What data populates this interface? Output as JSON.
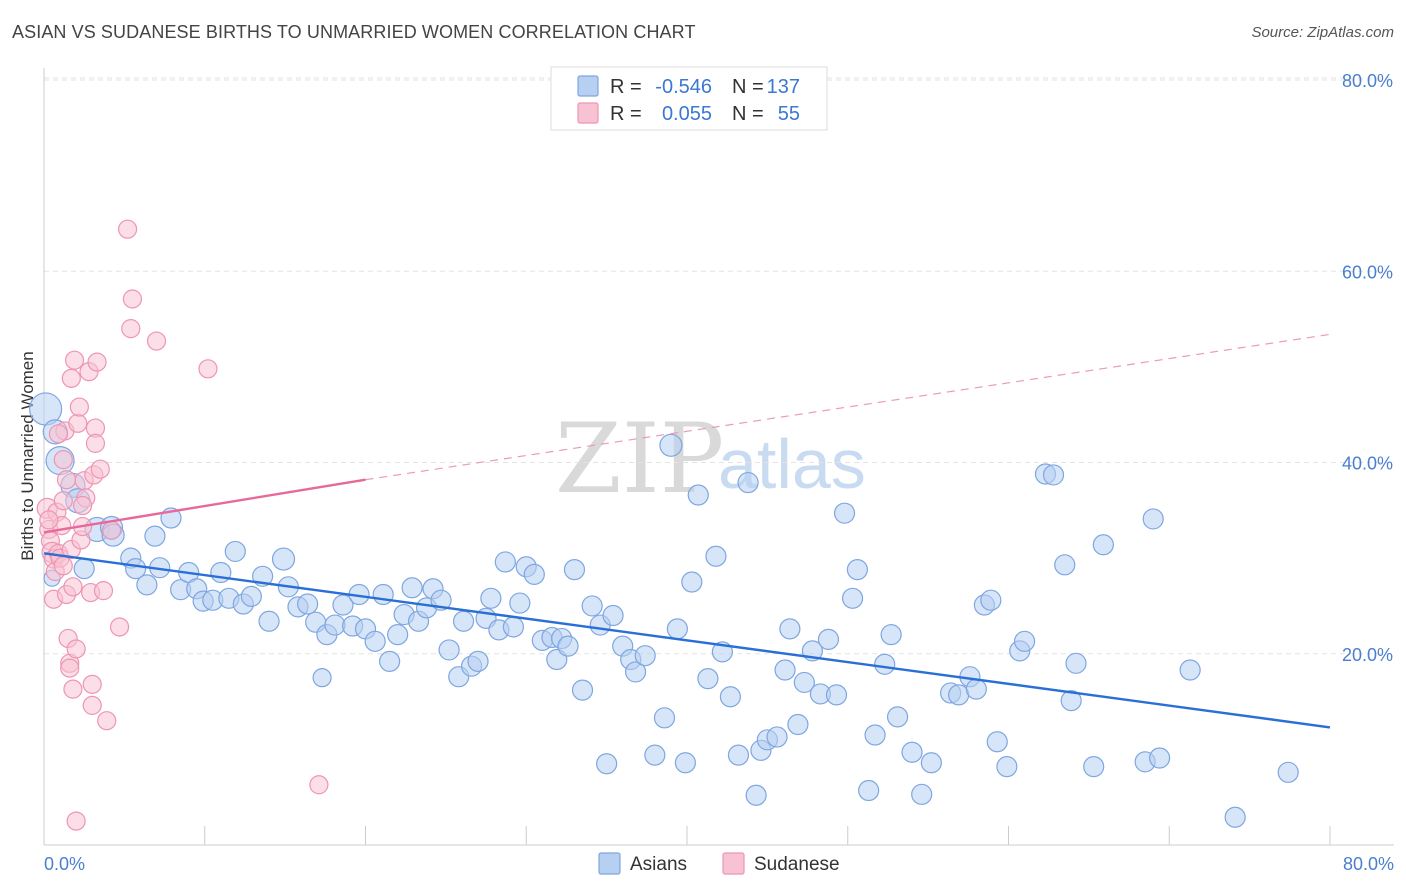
{
  "title": "ASIAN VS SUDANESE BIRTHS TO UNMARRIED WOMEN CORRELATION CHART",
  "source": "Source: ZipAtlas.com",
  "watermark": {
    "part1": "ZIP",
    "part2": "atlas"
  },
  "legend": {
    "r_label": "R =",
    "n_label": "N =",
    "series": [
      {
        "name": "Asians",
        "r": "-0.546",
        "n": "137",
        "fill": "#b7d0f2",
        "stroke": "#7ea6e0"
      },
      {
        "name": "Sudanese",
        "r": "0.055",
        "n": "55",
        "fill": "#f7c3d4",
        "stroke": "#ee95b2"
      }
    ]
  },
  "chart_data": {
    "type": "scatter",
    "title": "ASIAN VS SUDANESE BIRTHS TO UNMARRIED WOMEN CORRELATION CHART",
    "ylabel": "Births to Unmarried Women",
    "xlabel": "",
    "xlim": [
      0,
      80
    ],
    "ylim": [
      0,
      80
    ],
    "x_tick_labels": [
      "0.0%",
      "80.0%"
    ],
    "y_tick_labels": [
      "20.0%",
      "40.0%",
      "60.0%",
      "80.0%"
    ],
    "y_ticks": [
      20,
      40,
      60,
      80
    ],
    "grid": "horizontal dashed",
    "legend_position": "top-center",
    "series": [
      {
        "name": "Asians",
        "color": "#6f9fe0",
        "trend": {
          "x": [
            0,
            80
          ],
          "y": [
            30.5,
            12.3
          ],
          "style": "solid"
        },
        "points": [
          [
            0.1,
            45.6,
            16
          ],
          [
            0.7,
            43.2,
            12
          ],
          [
            1.0,
            40.2,
            14
          ],
          [
            1.8,
            37.6,
            12
          ],
          [
            2.1,
            36.0,
            12
          ],
          [
            3.3,
            33.0,
            12
          ],
          [
            4.2,
            33.2,
            11
          ],
          [
            4.3,
            32.4,
            11
          ],
          [
            2.5,
            28.9,
            10
          ],
          [
            5.4,
            30.0,
            10
          ],
          [
            5.7,
            28.9,
            10
          ],
          [
            6.4,
            27.2,
            10
          ],
          [
            6.9,
            32.3,
            10
          ],
          [
            7.2,
            29.0,
            10
          ],
          [
            7.9,
            34.2,
            10
          ],
          [
            8.5,
            26.7,
            10
          ],
          [
            9.0,
            28.5,
            10
          ],
          [
            9.5,
            26.8,
            10
          ],
          [
            9.9,
            25.5,
            10
          ],
          [
            10.5,
            25.6,
            10
          ],
          [
            11.0,
            28.5,
            10
          ],
          [
            11.5,
            25.8,
            10
          ],
          [
            11.9,
            30.7,
            10
          ],
          [
            12.4,
            25.2,
            10
          ],
          [
            12.9,
            26.0,
            10
          ],
          [
            13.6,
            28.1,
            10
          ],
          [
            14.0,
            23.4,
            10
          ],
          [
            14.9,
            29.9,
            11
          ],
          [
            15.2,
            27.0,
            10
          ],
          [
            15.8,
            24.9,
            10
          ],
          [
            16.4,
            25.2,
            10
          ],
          [
            16.9,
            23.3,
            10
          ],
          [
            17.3,
            17.5,
            9
          ],
          [
            17.6,
            22.0,
            10
          ],
          [
            18.1,
            23.0,
            10
          ],
          [
            18.6,
            25.1,
            10
          ],
          [
            19.2,
            22.9,
            10
          ],
          [
            19.6,
            26.2,
            10
          ],
          [
            20.0,
            22.6,
            10
          ],
          [
            20.6,
            21.3,
            10
          ],
          [
            21.1,
            26.2,
            10
          ],
          [
            21.5,
            19.2,
            10
          ],
          [
            22.0,
            22.0,
            10
          ],
          [
            22.4,
            24.1,
            10
          ],
          [
            22.9,
            26.9,
            10
          ],
          [
            23.3,
            23.4,
            10
          ],
          [
            23.8,
            24.8,
            10
          ],
          [
            24.2,
            26.8,
            10
          ],
          [
            24.7,
            25.6,
            10
          ],
          [
            25.2,
            20.4,
            10
          ],
          [
            25.8,
            17.6,
            10
          ],
          [
            26.1,
            23.4,
            10
          ],
          [
            26.6,
            18.7,
            10
          ],
          [
            27.0,
            19.2,
            10
          ],
          [
            27.5,
            23.7,
            10
          ],
          [
            27.8,
            25.8,
            10
          ],
          [
            28.3,
            22.5,
            10
          ],
          [
            28.7,
            29.6,
            10
          ],
          [
            29.2,
            22.8,
            10
          ],
          [
            29.6,
            25.3,
            10
          ],
          [
            30.0,
            29.1,
            10
          ],
          [
            30.5,
            28.3,
            10
          ],
          [
            31.0,
            21.4,
            10
          ],
          [
            31.6,
            21.7,
            10
          ],
          [
            31.9,
            19.4,
            10
          ],
          [
            32.2,
            21.6,
            10
          ],
          [
            32.6,
            20.8,
            10
          ],
          [
            33.0,
            28.8,
            10
          ],
          [
            33.5,
            16.2,
            10
          ],
          [
            34.1,
            25.0,
            10
          ],
          [
            34.6,
            23.0,
            10
          ],
          [
            35.0,
            8.5,
            10
          ],
          [
            35.4,
            24.0,
            10
          ],
          [
            36.0,
            20.8,
            10
          ],
          [
            36.5,
            19.4,
            10
          ],
          [
            36.8,
            18.1,
            10
          ],
          [
            37.4,
            19.8,
            10
          ],
          [
            38.0,
            9.4,
            10
          ],
          [
            38.6,
            13.3,
            10
          ],
          [
            39.0,
            41.8,
            11
          ],
          [
            39.4,
            22.6,
            10
          ],
          [
            39.9,
            8.6,
            10
          ],
          [
            40.3,
            27.5,
            10
          ],
          [
            40.7,
            36.6,
            10
          ],
          [
            41.3,
            17.4,
            10
          ],
          [
            41.8,
            30.2,
            10
          ],
          [
            42.2,
            20.2,
            10
          ],
          [
            42.7,
            15.5,
            10
          ],
          [
            43.2,
            9.4,
            10
          ],
          [
            43.8,
            37.9,
            10
          ],
          [
            44.3,
            5.2,
            10
          ],
          [
            44.6,
            9.9,
            10
          ],
          [
            45.0,
            11.0,
            10
          ],
          [
            45.6,
            11.3,
            10
          ],
          [
            46.1,
            18.3,
            10
          ],
          [
            46.4,
            22.6,
            10
          ],
          [
            46.9,
            12.6,
            10
          ],
          [
            47.3,
            17.0,
            10
          ],
          [
            47.8,
            20.3,
            10
          ],
          [
            48.3,
            15.8,
            10
          ],
          [
            48.8,
            21.5,
            10
          ],
          [
            49.3,
            15.7,
            10
          ],
          [
            49.8,
            34.7,
            10
          ],
          [
            50.3,
            25.8,
            10
          ],
          [
            50.6,
            28.8,
            10
          ],
          [
            51.3,
            5.7,
            10
          ],
          [
            51.7,
            11.5,
            10
          ],
          [
            52.3,
            18.9,
            10
          ],
          [
            52.7,
            22.0,
            10
          ],
          [
            53.1,
            13.4,
            10
          ],
          [
            54.0,
            9.7,
            10
          ],
          [
            54.6,
            5.3,
            10
          ],
          [
            55.2,
            8.6,
            10
          ],
          [
            56.4,
            15.9,
            10
          ],
          [
            56.9,
            15.7,
            10
          ],
          [
            57.6,
            17.6,
            10
          ],
          [
            58.0,
            16.3,
            10
          ],
          [
            58.5,
            25.1,
            10
          ],
          [
            58.9,
            25.6,
            10
          ],
          [
            59.3,
            10.8,
            10
          ],
          [
            59.9,
            8.2,
            10
          ],
          [
            60.7,
            20.3,
            10
          ],
          [
            61.0,
            21.3,
            10
          ],
          [
            62.3,
            38.8,
            10
          ],
          [
            62.8,
            38.7,
            10
          ],
          [
            63.5,
            29.3,
            10
          ],
          [
            63.9,
            15.1,
            10
          ],
          [
            64.2,
            19.0,
            10
          ],
          [
            65.3,
            8.2,
            10
          ],
          [
            65.9,
            31.4,
            10
          ],
          [
            68.5,
            8.7,
            10
          ],
          [
            69.0,
            34.1,
            10
          ],
          [
            69.4,
            9.1,
            10
          ],
          [
            71.3,
            18.3,
            10
          ],
          [
            74.1,
            2.9,
            10
          ],
          [
            77.4,
            7.6,
            10
          ],
          [
            0.5,
            27.9,
            8
          ]
        ]
      },
      {
        "name": "Sudanese",
        "color": "#ef8fb0",
        "trend": {
          "x": [
            0,
            20
          ],
          "y": [
            32.7,
            38.2
          ],
          "style": "solid"
        },
        "trend_extension": {
          "x": [
            20,
            80
          ],
          "y": [
            38.2,
            53.4
          ],
          "style": "dashed"
        },
        "points": [
          [
            0.2,
            35.2,
            10
          ],
          [
            0.3,
            33.0,
            9
          ],
          [
            0.4,
            31.8,
            9
          ],
          [
            0.5,
            30.6,
            10
          ],
          [
            0.6,
            29.9,
            9
          ],
          [
            0.7,
            28.6,
            9
          ],
          [
            0.6,
            25.7,
            9
          ],
          [
            0.8,
            34.8,
            9
          ],
          [
            0.9,
            30.5,
            9
          ],
          [
            1.0,
            30.0,
            9
          ],
          [
            1.1,
            33.4,
            9
          ],
          [
            1.2,
            29.2,
            9
          ],
          [
            1.2,
            40.3,
            9
          ],
          [
            1.3,
            43.3,
            9
          ],
          [
            1.4,
            38.2,
            9
          ],
          [
            1.4,
            26.2,
            9
          ],
          [
            1.5,
            21.6,
            9
          ],
          [
            1.6,
            19.0,
            9
          ],
          [
            1.6,
            18.5,
            9
          ],
          [
            1.7,
            48.8,
            9
          ],
          [
            1.7,
            30.9,
            9
          ],
          [
            1.8,
            27.0,
            9
          ],
          [
            1.8,
            16.3,
            9
          ],
          [
            1.9,
            50.7,
            9
          ],
          [
            2.0,
            20.5,
            9
          ],
          [
            2.0,
            2.5,
            9
          ],
          [
            2.1,
            44.1,
            9
          ],
          [
            2.2,
            45.8,
            9
          ],
          [
            2.3,
            31.9,
            9
          ],
          [
            2.4,
            33.3,
            9
          ],
          [
            2.5,
            38.1,
            9
          ],
          [
            2.6,
            36.3,
            9
          ],
          [
            2.8,
            49.5,
            9
          ],
          [
            2.9,
            26.4,
            9
          ],
          [
            3.0,
            16.8,
            9
          ],
          [
            3.0,
            14.6,
            9
          ],
          [
            3.1,
            38.7,
            9
          ],
          [
            3.2,
            43.6,
            9
          ],
          [
            3.2,
            42.0,
            9
          ],
          [
            3.3,
            50.5,
            9
          ],
          [
            3.5,
            39.3,
            9
          ],
          [
            3.7,
            26.6,
            9
          ],
          [
            3.9,
            13.0,
            9
          ],
          [
            4.2,
            32.9,
            9
          ],
          [
            4.7,
            22.8,
            9
          ],
          [
            5.2,
            64.4,
            9
          ],
          [
            5.5,
            57.1,
            9
          ],
          [
            5.4,
            54.0,
            9
          ],
          [
            7.0,
            52.7,
            9
          ],
          [
            10.2,
            49.8,
            9
          ],
          [
            17.1,
            6.3,
            9
          ],
          [
            0.9,
            43.0,
            9
          ],
          [
            1.2,
            36.0,
            9
          ],
          [
            0.3,
            34.0,
            9
          ],
          [
            2.4,
            35.5,
            9
          ]
        ]
      }
    ]
  }
}
